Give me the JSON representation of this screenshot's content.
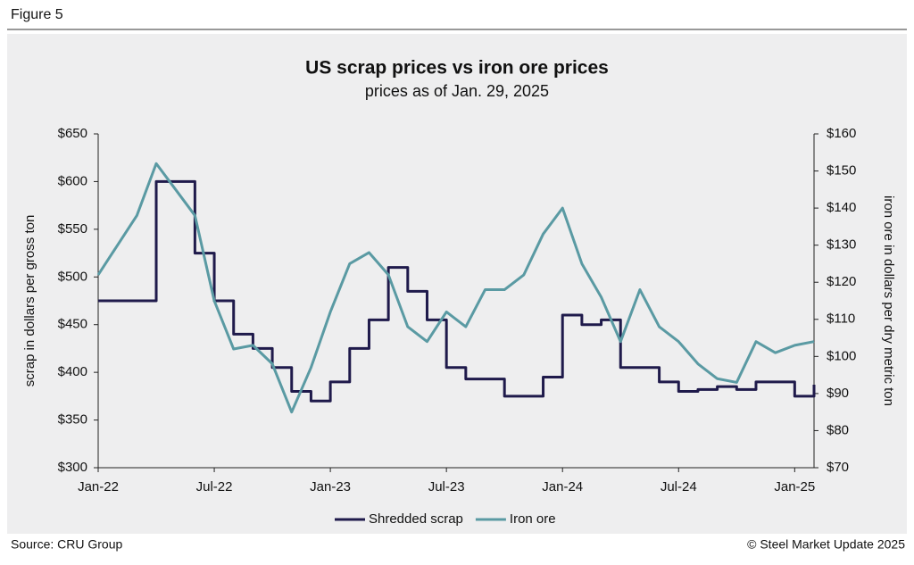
{
  "figure_label": "Figure 5",
  "source": "Source: CRU Group",
  "copyright": "© Steel Market Update 2025",
  "chart_data": {
    "type": "line",
    "step": true,
    "title": "US scrap prices vs iron ore prices",
    "subtitle": "prices as of Jan. 29, 2025",
    "y_label": "scrap in dollars per gross ton",
    "y2_label": "iron ore in dollars per dry metric ton",
    "categories": [
      "Jan-22",
      null,
      null,
      null,
      null,
      null,
      "Jul-22",
      null,
      null,
      null,
      null,
      null,
      "Jan-23",
      null,
      null,
      null,
      null,
      null,
      "Jul-23",
      null,
      null,
      null,
      null,
      null,
      "Jan-24",
      null,
      null,
      null,
      null,
      null,
      "Jul-24",
      null,
      null,
      null,
      null,
      null,
      "Jan-25",
      null
    ],
    "series": [
      {
        "name": "Shredded scrap",
        "color": "#1f1a4b",
        "step": true,
        "values": [
          475,
          475,
          475,
          600,
          600,
          525,
          475,
          440,
          425,
          405,
          380,
          370,
          390,
          425,
          455,
          510,
          485,
          455,
          405,
          393,
          393,
          375,
          375,
          395,
          460,
          450,
          455,
          405,
          405,
          390,
          380,
          382,
          385,
          382,
          390,
          390,
          375,
          387
        ]
      },
      {
        "name": "Iron ore",
        "color": "#5a9aa3",
        "axis": "y2",
        "step": false,
        "values": [
          122,
          130,
          138,
          152,
          145,
          138,
          115,
          102,
          103,
          98,
          85,
          97,
          112,
          125,
          128,
          122,
          108,
          104,
          112,
          108,
          118,
          118,
          122,
          133,
          140,
          125,
          116,
          104,
          118,
          108,
          104,
          98,
          94,
          93,
          104,
          101,
          103,
          104
        ]
      }
    ],
    "ylim": [
      300,
      650
    ],
    "yticks": [
      {
        "value": 300,
        "label": "$300"
      },
      {
        "value": 350,
        "label": "$350"
      },
      {
        "value": 400,
        "label": "$400"
      },
      {
        "value": 450,
        "label": "$450"
      },
      {
        "value": 500,
        "label": "$500"
      },
      {
        "value": 550,
        "label": "$550"
      },
      {
        "value": 600,
        "label": "$600"
      },
      {
        "value": 650,
        "label": "$650"
      }
    ],
    "y2lim": [
      70,
      160
    ],
    "y2ticks": [
      {
        "value": 70,
        "label": "$70"
      },
      {
        "value": 80,
        "label": "$80"
      },
      {
        "value": 90,
        "label": "$90"
      },
      {
        "value": 100,
        "label": "$100"
      },
      {
        "value": 110,
        "label": "$110"
      },
      {
        "value": 120,
        "label": "$120"
      },
      {
        "value": 130,
        "label": "$130"
      },
      {
        "value": 140,
        "label": "$140"
      },
      {
        "value": 150,
        "label": "$150"
      },
      {
        "value": 160,
        "label": "$160"
      }
    ],
    "legend": "bottom"
  }
}
